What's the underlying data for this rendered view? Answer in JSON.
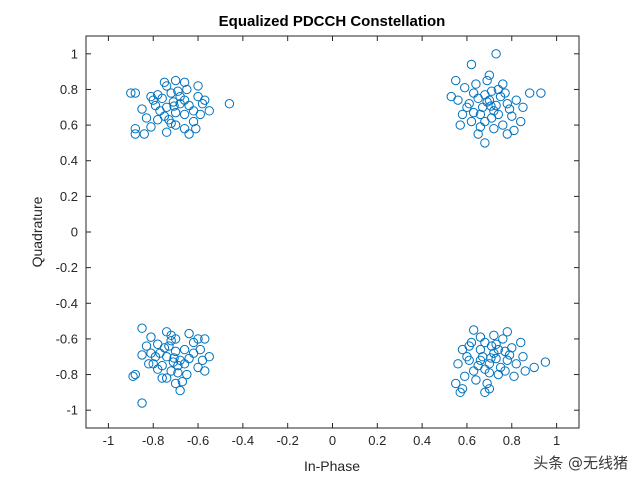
{
  "chart_data": {
    "type": "scatter",
    "title": "Equalized PDCCH Constellation",
    "xlabel": "In-Phase",
    "ylabel": "Quadrature",
    "xlim": [
      -1.1,
      1.1
    ],
    "ylim": [
      -1.1,
      1.1
    ],
    "xticks": [
      -1,
      -0.8,
      -0.6,
      -0.4,
      -0.2,
      0,
      0.2,
      0.4,
      0.6,
      0.8,
      1
    ],
    "yticks": [
      -1,
      -0.8,
      -0.6,
      -0.4,
      -0.2,
      0,
      0.2,
      0.4,
      0.6,
      0.8,
      1
    ],
    "xtick_labels": [
      "-1",
      "-0.8",
      "-0.6",
      "-0.4",
      "-0.2",
      "0",
      "0.2",
      "0.4",
      "0.6",
      "0.8",
      "1"
    ],
    "ytick_labels": [
      "-1",
      "-0.8",
      "-0.6",
      "-0.4",
      "-0.2",
      "0",
      "0.2",
      "0.4",
      "0.6",
      "0.8",
      "1"
    ],
    "grid": false,
    "marker": "circle-open",
    "color": "#0072BD",
    "series": [
      {
        "points": [
          [
            0.707,
            0.707
          ],
          [
            0.65,
            0.75
          ],
          [
            0.72,
            0.68
          ],
          [
            0.78,
            0.72
          ],
          [
            0.68,
            0.62
          ],
          [
            0.6,
            0.7
          ],
          [
            0.74,
            0.8
          ],
          [
            0.66,
            0.66
          ],
          [
            0.8,
            0.65
          ],
          [
            0.7,
            0.74
          ],
          [
            0.63,
            0.78
          ],
          [
            0.76,
            0.6
          ],
          [
            0.69,
            0.85
          ],
          [
            0.58,
            0.66
          ],
          [
            0.82,
            0.74
          ],
          [
            0.73,
            0.71
          ],
          [
            0.67,
            0.7
          ],
          [
            0.62,
            0.62
          ],
          [
            0.75,
            0.76
          ],
          [
            0.71,
            0.64
          ],
          [
            0.64,
            0.83
          ],
          [
            0.79,
            0.69
          ],
          [
            0.68,
            0.77
          ],
          [
            0.72,
            0.58
          ],
          [
            0.56,
            0.74
          ],
          [
            0.85,
            0.7
          ],
          [
            0.61,
            0.72
          ],
          [
            0.74,
            0.66
          ],
          [
            0.66,
            0.59
          ],
          [
            0.7,
            0.88
          ],
          [
            0.77,
            0.78
          ],
          [
            0.59,
            0.81
          ],
          [
            0.73,
            1.0
          ],
          [
            0.62,
            0.94
          ],
          [
            0.55,
            0.85
          ],
          [
            0.53,
            0.76
          ],
          [
            0.88,
            0.78
          ],
          [
            0.93,
            0.78
          ],
          [
            0.81,
            0.57
          ],
          [
            0.68,
            0.5
          ],
          [
            0.65,
            0.55
          ],
          [
            0.78,
            0.55
          ],
          [
            0.84,
            0.62
          ],
          [
            0.57,
            0.6
          ],
          [
            0.71,
            0.79
          ],
          [
            0.76,
            0.83
          ],
          [
            0.63,
            0.67
          ],
          [
            0.69,
            0.73
          ]
        ]
      },
      {
        "points": [
          [
            -0.707,
            0.707
          ],
          [
            -0.75,
            0.65
          ],
          [
            -0.68,
            0.72
          ],
          [
            -0.72,
            0.78
          ],
          [
            -0.62,
            0.68
          ],
          [
            -0.7,
            0.6
          ],
          [
            -0.8,
            0.74
          ],
          [
            -0.66,
            0.66
          ],
          [
            -0.65,
            0.8
          ],
          [
            -0.74,
            0.7
          ],
          [
            -0.78,
            0.63
          ],
          [
            -0.6,
            0.76
          ],
          [
            -0.85,
            0.69
          ],
          [
            -0.66,
            0.58
          ],
          [
            -0.74,
            0.82
          ],
          [
            -0.71,
            0.73
          ],
          [
            -0.7,
            0.67
          ],
          [
            -0.62,
            0.62
          ],
          [
            -0.76,
            0.75
          ],
          [
            -0.64,
            0.71
          ],
          [
            -0.83,
            0.64
          ],
          [
            -0.69,
            0.79
          ],
          [
            -0.77,
            0.68
          ],
          [
            -0.58,
            0.72
          ],
          [
            -0.74,
            0.56
          ],
          [
            -0.7,
            0.85
          ],
          [
            -0.72,
            0.61
          ],
          [
            -0.66,
            0.74
          ],
          [
            -0.59,
            0.66
          ],
          [
            -0.88,
            0.78
          ],
          [
            -0.78,
            0.77
          ],
          [
            -0.81,
            0.59
          ],
          [
            -0.46,
            0.72
          ],
          [
            -0.88,
            0.55
          ],
          [
            -0.88,
            0.58
          ],
          [
            -0.81,
            0.76
          ],
          [
            -0.66,
            0.84
          ],
          [
            -0.6,
            0.82
          ],
          [
            -0.55,
            0.68
          ],
          [
            -0.57,
            0.74
          ],
          [
            -0.84,
            0.55
          ],
          [
            -0.9,
            0.78
          ],
          [
            -0.64,
            0.55
          ],
          [
            -0.73,
            0.63
          ],
          [
            -0.79,
            0.71
          ],
          [
            -0.68,
            0.76
          ],
          [
            -0.75,
            0.84
          ],
          [
            -0.61,
            0.58
          ]
        ]
      },
      {
        "points": [
          [
            -0.707,
            -0.707
          ],
          [
            -0.75,
            -0.65
          ],
          [
            -0.68,
            -0.72
          ],
          [
            -0.72,
            -0.78
          ],
          [
            -0.62,
            -0.68
          ],
          [
            -0.7,
            -0.6
          ],
          [
            -0.8,
            -0.74
          ],
          [
            -0.66,
            -0.66
          ],
          [
            -0.65,
            -0.8
          ],
          [
            -0.74,
            -0.7
          ],
          [
            -0.78,
            -0.63
          ],
          [
            -0.6,
            -0.76
          ],
          [
            -0.85,
            -0.69
          ],
          [
            -0.72,
            -0.58
          ],
          [
            -0.74,
            -0.82
          ],
          [
            -0.71,
            -0.73
          ],
          [
            -0.7,
            -0.67
          ],
          [
            -0.62,
            -0.62
          ],
          [
            -0.76,
            -0.75
          ],
          [
            -0.64,
            -0.71
          ],
          [
            -0.83,
            -0.64
          ],
          [
            -0.69,
            -0.79
          ],
          [
            -0.77,
            -0.68
          ],
          [
            -0.58,
            -0.72
          ],
          [
            -0.74,
            -0.56
          ],
          [
            -0.7,
            -0.85
          ],
          [
            -0.72,
            -0.61
          ],
          [
            -0.66,
            -0.74
          ],
          [
            -0.59,
            -0.66
          ],
          [
            -0.85,
            -0.54
          ],
          [
            -0.78,
            -0.77
          ],
          [
            -0.81,
            -0.59
          ],
          [
            -0.88,
            -0.8
          ],
          [
            -0.89,
            -0.81
          ],
          [
            -0.85,
            -0.96
          ],
          [
            -0.68,
            -0.89
          ],
          [
            -0.57,
            -0.78
          ],
          [
            -0.55,
            -0.7
          ],
          [
            -0.57,
            -0.6
          ],
          [
            -0.6,
            -0.6
          ],
          [
            -0.82,
            -0.74
          ],
          [
            -0.79,
            -0.7
          ],
          [
            -0.67,
            -0.84
          ],
          [
            -0.73,
            -0.64
          ],
          [
            -0.64,
            -0.57
          ],
          [
            -0.76,
            -0.82
          ],
          [
            -0.81,
            -0.68
          ],
          [
            -0.69,
            -0.75
          ]
        ]
      },
      {
        "points": [
          [
            0.707,
            -0.707
          ],
          [
            0.65,
            -0.75
          ],
          [
            0.72,
            -0.68
          ],
          [
            0.78,
            -0.72
          ],
          [
            0.68,
            -0.62
          ],
          [
            0.6,
            -0.7
          ],
          [
            0.74,
            -0.8
          ],
          [
            0.66,
            -0.66
          ],
          [
            0.8,
            -0.65
          ],
          [
            0.7,
            -0.74
          ],
          [
            0.63,
            -0.78
          ],
          [
            0.76,
            -0.6
          ],
          [
            0.69,
            -0.85
          ],
          [
            0.58,
            -0.66
          ],
          [
            0.82,
            -0.74
          ],
          [
            0.73,
            -0.71
          ],
          [
            0.67,
            -0.7
          ],
          [
            0.62,
            -0.62
          ],
          [
            0.75,
            -0.76
          ],
          [
            0.71,
            -0.64
          ],
          [
            0.64,
            -0.83
          ],
          [
            0.79,
            -0.69
          ],
          [
            0.68,
            -0.77
          ],
          [
            0.72,
            -0.58
          ],
          [
            0.56,
            -0.74
          ],
          [
            0.85,
            -0.7
          ],
          [
            0.61,
            -0.72
          ],
          [
            0.74,
            -0.66
          ],
          [
            0.66,
            -0.59
          ],
          [
            0.7,
            -0.88
          ],
          [
            0.77,
            -0.78
          ],
          [
            0.59,
            -0.81
          ],
          [
            0.55,
            -0.85
          ],
          [
            0.57,
            -0.9
          ],
          [
            0.86,
            -0.78
          ],
          [
            0.9,
            -0.76
          ],
          [
            0.95,
            -0.73
          ],
          [
            0.78,
            -0.56
          ],
          [
            0.84,
            -0.62
          ],
          [
            0.63,
            -0.55
          ],
          [
            0.68,
            -0.9
          ],
          [
            0.58,
            -0.88
          ],
          [
            0.81,
            -0.81
          ],
          [
            0.66,
            -0.72
          ],
          [
            0.73,
            -0.63
          ],
          [
            0.77,
            -0.67
          ],
          [
            0.61,
            -0.64
          ],
          [
            0.7,
            -0.79
          ]
        ]
      }
    ]
  },
  "watermark": "头条 @无线猪"
}
